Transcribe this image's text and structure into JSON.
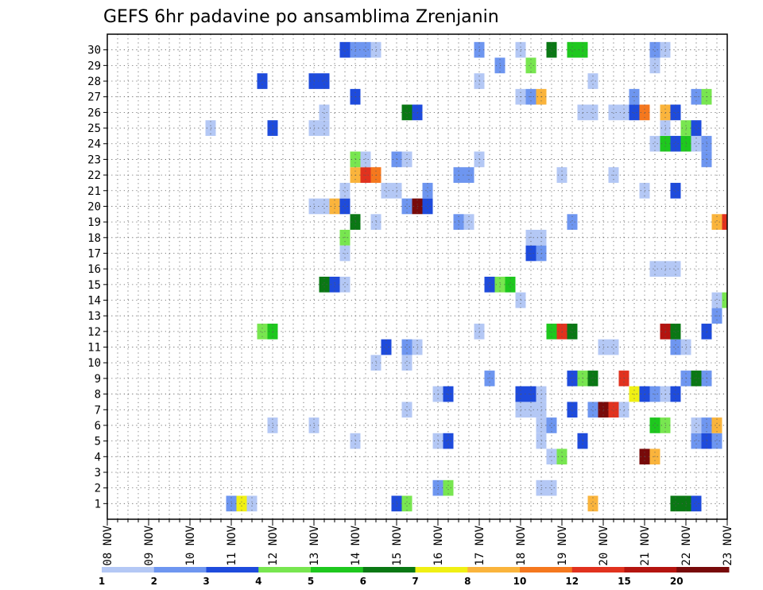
{
  "chart_data": {
    "type": "heatmap",
    "title": "GEFS 6hr padavine po ansamblima Zrenjanin",
    "x_tick_labels": [
      "08 NOV",
      "09 NOV",
      "10 NOV",
      "11 NOV",
      "12 NOV",
      "13 NOV",
      "14 NOV",
      "15 NOV",
      "16 NOV",
      "17 NOV",
      "18 NOV",
      "19 NOV",
      "20 NOV",
      "21 NOV",
      "22 NOV",
      "23 NOV"
    ],
    "y_tick_labels": [
      "1",
      "2",
      "3",
      "4",
      "5",
      "6",
      "7",
      "8",
      "9",
      "10",
      "11",
      "12",
      "13",
      "14",
      "15",
      "16",
      "17",
      "18",
      "19",
      "20",
      "21",
      "22",
      "23",
      "24",
      "25",
      "26",
      "27",
      "28",
      "29",
      "30"
    ],
    "xlim": [
      0,
      60
    ],
    "ylim": [
      0,
      30
    ],
    "step_hours": 6,
    "grid": true,
    "levels": [
      "1",
      "2",
      "3",
      "4",
      "5",
      "6",
      "7",
      "8",
      "10",
      "12",
      "15",
      "20"
    ],
    "colors": [
      "#b4c8f5",
      "#6e96f0",
      "#1e4bdc",
      "#78e650",
      "#1ec81e",
      "#0a7814",
      "#f0f014",
      "#fab43c",
      "#f5781e",
      "#e1321e",
      "#b4140f",
      "#780a0a"
    ],
    "cells": [
      {
        "x": 12,
        "y": 0,
        "c": 1
      },
      {
        "x": 13,
        "y": 0,
        "c": 6
      },
      {
        "x": 14,
        "y": 0,
        "c": 0
      },
      {
        "x": 28,
        "y": 0,
        "c": 2
      },
      {
        "x": 29,
        "y": 0,
        "c": 3
      },
      {
        "x": 47,
        "y": 0,
        "c": 7
      },
      {
        "x": 55,
        "y": 0,
        "c": 5
      },
      {
        "x": 56,
        "y": 0,
        "c": 5
      },
      {
        "x": 57,
        "y": 0,
        "c": 2
      },
      {
        "x": 32,
        "y": 1,
        "c": 1
      },
      {
        "x": 33,
        "y": 1,
        "c": 3
      },
      {
        "x": 42,
        "y": 1,
        "c": 0
      },
      {
        "x": 43,
        "y": 1,
        "c": 0
      },
      {
        "x": 52,
        "y": 3,
        "c": 11
      },
      {
        "x": 53,
        "y": 3,
        "c": 7
      },
      {
        "x": 43,
        "y": 3,
        "c": 0
      },
      {
        "x": 44,
        "y": 3,
        "c": 3
      },
      {
        "x": 24,
        "y": 4,
        "c": 0
      },
      {
        "x": 32,
        "y": 4,
        "c": 0
      },
      {
        "x": 33,
        "y": 4,
        "c": 2
      },
      {
        "x": 42,
        "y": 4,
        "c": 0
      },
      {
        "x": 46,
        "y": 4,
        "c": 2
      },
      {
        "x": 57,
        "y": 4,
        "c": 1
      },
      {
        "x": 58,
        "y": 4,
        "c": 2
      },
      {
        "x": 59,
        "y": 4,
        "c": 1
      },
      {
        "x": 16,
        "y": 5,
        "c": 0
      },
      {
        "x": 20,
        "y": 5,
        "c": 0
      },
      {
        "x": 42,
        "y": 5,
        "c": 0
      },
      {
        "x": 43,
        "y": 5,
        "c": 1
      },
      {
        "x": 53,
        "y": 5,
        "c": 4
      },
      {
        "x": 54,
        "y": 5,
        "c": 3
      },
      {
        "x": 57,
        "y": 5,
        "c": 0
      },
      {
        "x": 58,
        "y": 5,
        "c": 1
      },
      {
        "x": 59,
        "y": 5,
        "c": 7
      },
      {
        "x": 29,
        "y": 6,
        "c": 0
      },
      {
        "x": 40,
        "y": 6,
        "c": 0
      },
      {
        "x": 41,
        "y": 6,
        "c": 0
      },
      {
        "x": 42,
        "y": 6,
        "c": 0
      },
      {
        "x": 45,
        "y": 6,
        "c": 2
      },
      {
        "x": 47,
        "y": 6,
        "c": 1
      },
      {
        "x": 48,
        "y": 6,
        "c": 11
      },
      {
        "x": 49,
        "y": 6,
        "c": 9
      },
      {
        "x": 50,
        "y": 6,
        "c": 0
      },
      {
        "x": 32,
        "y": 7,
        "c": 0
      },
      {
        "x": 33,
        "y": 7,
        "c": 2
      },
      {
        "x": 40,
        "y": 7,
        "c": 2
      },
      {
        "x": 41,
        "y": 7,
        "c": 2
      },
      {
        "x": 42,
        "y": 7,
        "c": 0
      },
      {
        "x": 51,
        "y": 7,
        "c": 6
      },
      {
        "x": 52,
        "y": 7,
        "c": 2
      },
      {
        "x": 53,
        "y": 7,
        "c": 1
      },
      {
        "x": 54,
        "y": 7,
        "c": 0
      },
      {
        "x": 55,
        "y": 7,
        "c": 2
      },
      {
        "x": 37,
        "y": 8,
        "c": 1
      },
      {
        "x": 45,
        "y": 8,
        "c": 2
      },
      {
        "x": 46,
        "y": 8,
        "c": 3
      },
      {
        "x": 47,
        "y": 8,
        "c": 5
      },
      {
        "x": 50,
        "y": 8,
        "c": 9
      },
      {
        "x": 56,
        "y": 8,
        "c": 1
      },
      {
        "x": 57,
        "y": 8,
        "c": 5
      },
      {
        "x": 58,
        "y": 8,
        "c": 1
      },
      {
        "x": 26,
        "y": 9,
        "c": 0
      },
      {
        "x": 29,
        "y": 9,
        "c": 0
      },
      {
        "x": 27,
        "y": 10,
        "c": 2
      },
      {
        "x": 29,
        "y": 10,
        "c": 1
      },
      {
        "x": 30,
        "y": 10,
        "c": 0
      },
      {
        "x": 48,
        "y": 10,
        "c": 0
      },
      {
        "x": 49,
        "y": 10,
        "c": 0
      },
      {
        "x": 55,
        "y": 10,
        "c": 1
      },
      {
        "x": 56,
        "y": 10,
        "c": 0
      },
      {
        "x": 15,
        "y": 11,
        "c": 3
      },
      {
        "x": 16,
        "y": 11,
        "c": 4
      },
      {
        "x": 36,
        "y": 11,
        "c": 0
      },
      {
        "x": 43,
        "y": 11,
        "c": 4
      },
      {
        "x": 44,
        "y": 11,
        "c": 9
      },
      {
        "x": 45,
        "y": 11,
        "c": 5
      },
      {
        "x": 54,
        "y": 11,
        "c": 10
      },
      {
        "x": 55,
        "y": 11,
        "c": 5
      },
      {
        "x": 58,
        "y": 11,
        "c": 2
      },
      {
        "x": 59,
        "y": 12,
        "c": 1
      },
      {
        "x": 59,
        "y": 13,
        "c": 0
      },
      {
        "x": 60,
        "y": 13,
        "c": 3
      },
      {
        "x": 40,
        "y": 13,
        "c": 0
      },
      {
        "x": 21,
        "y": 14,
        "c": 5
      },
      {
        "x": 22,
        "y": 14,
        "c": 2
      },
      {
        "x": 23,
        "y": 14,
        "c": 0
      },
      {
        "x": 37,
        "y": 14,
        "c": 2
      },
      {
        "x": 38,
        "y": 14,
        "c": 3
      },
      {
        "x": 39,
        "y": 14,
        "c": 4
      },
      {
        "x": 53,
        "y": 15,
        "c": 0
      },
      {
        "x": 54,
        "y": 15,
        "c": 0
      },
      {
        "x": 55,
        "y": 15,
        "c": 0
      },
      {
        "x": 23,
        "y": 16,
        "c": 0
      },
      {
        "x": 41,
        "y": 16,
        "c": 2
      },
      {
        "x": 42,
        "y": 16,
        "c": 1
      },
      {
        "x": 23,
        "y": 17,
        "c": 3
      },
      {
        "x": 41,
        "y": 17,
        "c": 0
      },
      {
        "x": 42,
        "y": 17,
        "c": 0
      },
      {
        "x": 24,
        "y": 18,
        "c": 5
      },
      {
        "x": 26,
        "y": 18,
        "c": 0
      },
      {
        "x": 34,
        "y": 18,
        "c": 1
      },
      {
        "x": 35,
        "y": 18,
        "c": 0
      },
      {
        "x": 45,
        "y": 18,
        "c": 1
      },
      {
        "x": 59,
        "y": 18,
        "c": 7
      },
      {
        "x": 60,
        "y": 18,
        "c": 9
      },
      {
        "x": 20,
        "y": 19,
        "c": 0
      },
      {
        "x": 21,
        "y": 19,
        "c": 0
      },
      {
        "x": 22,
        "y": 19,
        "c": 7
      },
      {
        "x": 23,
        "y": 19,
        "c": 2
      },
      {
        "x": 29,
        "y": 19,
        "c": 1
      },
      {
        "x": 30,
        "y": 19,
        "c": 11
      },
      {
        "x": 31,
        "y": 19,
        "c": 2
      },
      {
        "x": 23,
        "y": 20,
        "c": 0
      },
      {
        "x": 27,
        "y": 20,
        "c": 0
      },
      {
        "x": 28,
        "y": 20,
        "c": 0
      },
      {
        "x": 31,
        "y": 20,
        "c": 1
      },
      {
        "x": 52,
        "y": 20,
        "c": 0
      },
      {
        "x": 55,
        "y": 20,
        "c": 2
      },
      {
        "x": 24,
        "y": 21,
        "c": 7
      },
      {
        "x": 25,
        "y": 21,
        "c": 9
      },
      {
        "x": 26,
        "y": 21,
        "c": 8
      },
      {
        "x": 34,
        "y": 21,
        "c": 1
      },
      {
        "x": 35,
        "y": 21,
        "c": 1
      },
      {
        "x": 44,
        "y": 21,
        "c": 0
      },
      {
        "x": 49,
        "y": 21,
        "c": 0
      },
      {
        "x": 24,
        "y": 22,
        "c": 3
      },
      {
        "x": 25,
        "y": 22,
        "c": 0
      },
      {
        "x": 28,
        "y": 22,
        "c": 1
      },
      {
        "x": 29,
        "y": 22,
        "c": 0
      },
      {
        "x": 36,
        "y": 22,
        "c": 0
      },
      {
        "x": 58,
        "y": 22,
        "c": 1
      },
      {
        "x": 53,
        "y": 23,
        "c": 0
      },
      {
        "x": 54,
        "y": 23,
        "c": 4
      },
      {
        "x": 55,
        "y": 23,
        "c": 2
      },
      {
        "x": 56,
        "y": 23,
        "c": 4
      },
      {
        "x": 57,
        "y": 23,
        "c": 0
      },
      {
        "x": 58,
        "y": 23,
        "c": 1
      },
      {
        "x": 10,
        "y": 24,
        "c": 0
      },
      {
        "x": 16,
        "y": 24,
        "c": 2
      },
      {
        "x": 20,
        "y": 24,
        "c": 0
      },
      {
        "x": 21,
        "y": 24,
        "c": 0
      },
      {
        "x": 54,
        "y": 24,
        "c": 0
      },
      {
        "x": 56,
        "y": 24,
        "c": 3
      },
      {
        "x": 57,
        "y": 24,
        "c": 2
      },
      {
        "x": 21,
        "y": 25,
        "c": 0
      },
      {
        "x": 29,
        "y": 25,
        "c": 5
      },
      {
        "x": 30,
        "y": 25,
        "c": 2
      },
      {
        "x": 46,
        "y": 25,
        "c": 0
      },
      {
        "x": 47,
        "y": 25,
        "c": 0
      },
      {
        "x": 49,
        "y": 25,
        "c": 0
      },
      {
        "x": 50,
        "y": 25,
        "c": 0
      },
      {
        "x": 51,
        "y": 25,
        "c": 2
      },
      {
        "x": 52,
        "y": 25,
        "c": 8
      },
      {
        "x": 54,
        "y": 25,
        "c": 7
      },
      {
        "x": 55,
        "y": 25,
        "c": 2
      },
      {
        "x": 24,
        "y": 26,
        "c": 2
      },
      {
        "x": 40,
        "y": 26,
        "c": 0
      },
      {
        "x": 41,
        "y": 26,
        "c": 1
      },
      {
        "x": 42,
        "y": 26,
        "c": 7
      },
      {
        "x": 51,
        "y": 26,
        "c": 1
      },
      {
        "x": 57,
        "y": 26,
        "c": 1
      },
      {
        "x": 58,
        "y": 26,
        "c": 3
      },
      {
        "x": 15,
        "y": 27,
        "c": 2
      },
      {
        "x": 20,
        "y": 27,
        "c": 2
      },
      {
        "x": 21,
        "y": 27,
        "c": 2
      },
      {
        "x": 36,
        "y": 27,
        "c": 0
      },
      {
        "x": 47,
        "y": 27,
        "c": 0
      },
      {
        "x": 38,
        "y": 28,
        "c": 1
      },
      {
        "x": 41,
        "y": 28,
        "c": 3
      },
      {
        "x": 53,
        "y": 28,
        "c": 0
      },
      {
        "x": 23,
        "y": 29,
        "c": 2
      },
      {
        "x": 24,
        "y": 29,
        "c": 1
      },
      {
        "x": 25,
        "y": 29,
        "c": 1
      },
      {
        "x": 26,
        "y": 29,
        "c": 0
      },
      {
        "x": 36,
        "y": 29,
        "c": 1
      },
      {
        "x": 40,
        "y": 29,
        "c": 0
      },
      {
        "x": 43,
        "y": 29,
        "c": 5
      },
      {
        "x": 45,
        "y": 29,
        "c": 4
      },
      {
        "x": 46,
        "y": 29,
        "c": 4
      },
      {
        "x": 53,
        "y": 29,
        "c": 1
      },
      {
        "x": 54,
        "y": 29,
        "c": 0
      }
    ]
  }
}
